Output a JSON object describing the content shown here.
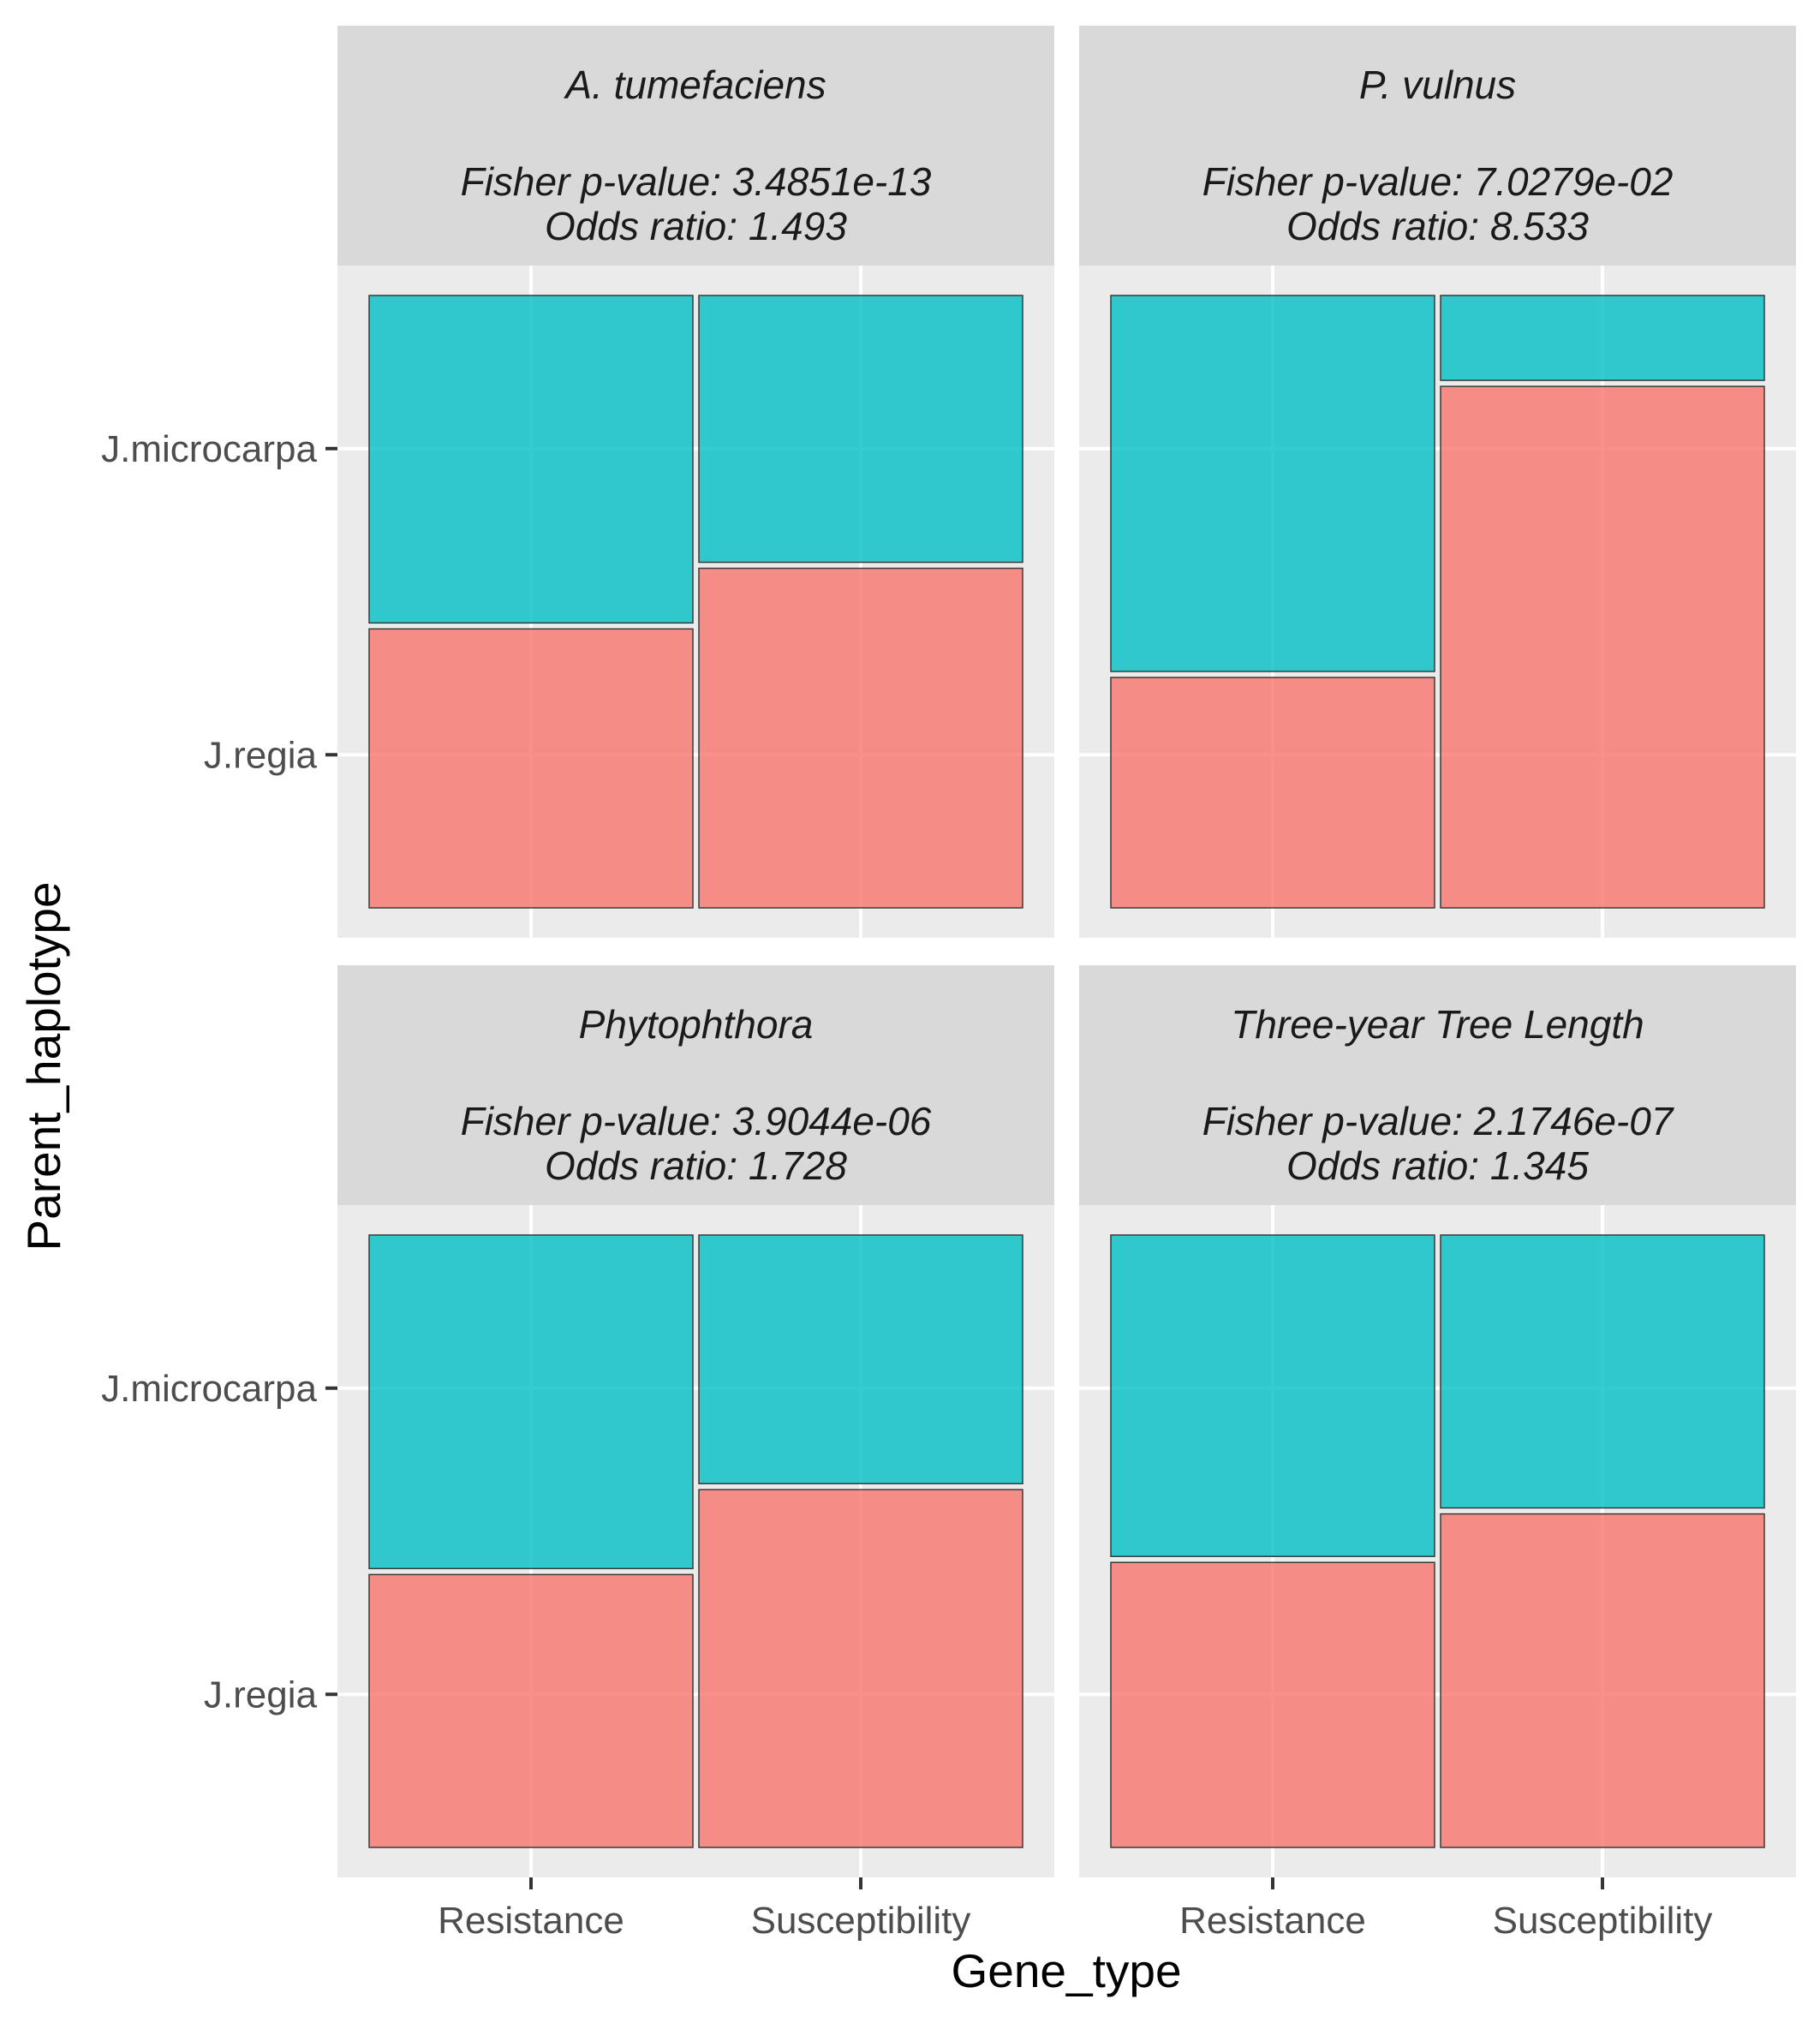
{
  "chart_data": {
    "type": "mosaic",
    "xlabel": "Gene_type",
    "ylabel": "Parent_haplotype",
    "categories": [
      "Resistance",
      "Susceptibility"
    ],
    "levels": [
      "J.regia",
      "J.microcarpa"
    ],
    "colors": {
      "J.regia": "#f8766d",
      "J.microcarpa": "#00bfc4"
    },
    "grid": true,
    "legend": "none",
    "panels": [
      {
        "title": "A. tumefaciens",
        "p_value_text": "Fisher p-value: 3.4851e-13",
        "odds_text": "Odds ratio: 1.493",
        "series": [
          {
            "category": "Resistance",
            "J.regia": 0.46,
            "J.microcarpa": 0.54
          },
          {
            "category": "Susceptibility",
            "J.regia": 0.56,
            "J.microcarpa": 0.44
          }
        ]
      },
      {
        "title": "P. vulnus",
        "p_value_text": "Fisher p-value: 7.0279e-02",
        "odds_text": "Odds ratio: 8.533",
        "series": [
          {
            "category": "Resistance",
            "J.regia": 0.38,
            "J.microcarpa": 0.62
          },
          {
            "category": "Susceptibility",
            "J.regia": 0.86,
            "J.microcarpa": 0.14
          }
        ]
      },
      {
        "title": "Phytophthora",
        "p_value_text": "Fisher p-value: 3.9044e-06",
        "odds_text": "Odds ratio: 1.728",
        "series": [
          {
            "category": "Resistance",
            "J.regia": 0.45,
            "J.microcarpa": 0.55
          },
          {
            "category": "Susceptibility",
            "J.regia": 0.59,
            "J.microcarpa": 0.41
          }
        ]
      },
      {
        "title": "Three-year Tree Length",
        "p_value_text": "Fisher p-value: 2.1746e-07",
        "odds_text": "Odds ratio: 1.345",
        "series": [
          {
            "category": "Resistance",
            "J.regia": 0.47,
            "J.microcarpa": 0.53
          },
          {
            "category": "Susceptibility",
            "J.regia": 0.55,
            "J.microcarpa": 0.45
          }
        ]
      }
    ]
  }
}
